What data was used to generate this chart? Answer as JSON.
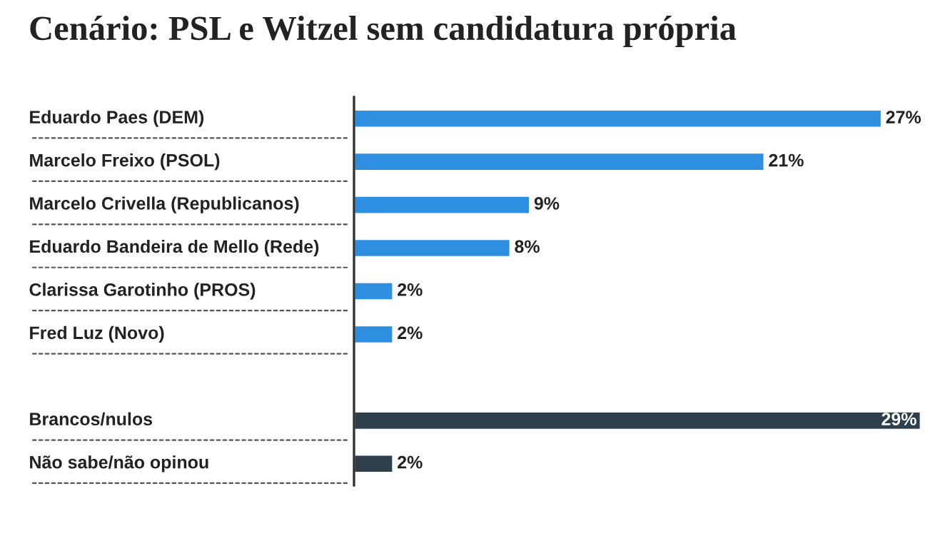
{
  "chart_data": {
    "type": "bar",
    "orientation": "horizontal",
    "title": "Cenário: PSL e Witzel sem candidatura própria",
    "categories": [
      "Eduardo Paes (DEM)",
      "Marcelo Freixo (PSOL)",
      "Marcelo Crivella (Republicanos)",
      "Eduardo Bandeira de Mello (Rede)",
      "Clarissa Garotinho (PROS)",
      "Fred Luz (Novo)",
      null,
      "Brancos/nulos",
      "Não sabe/não opinou"
    ],
    "values": [
      27,
      21,
      9,
      8,
      2,
      2,
      null,
      29,
      2
    ],
    "value_labels": [
      "27%",
      "21%",
      "9%",
      "8%",
      "2%",
      "2%",
      null,
      "29%",
      "2%"
    ],
    "colors": [
      "#2e8ee0",
      "#2e8ee0",
      "#2e8ee0",
      "#2e8ee0",
      "#2e8ee0",
      "#2e8ee0",
      null,
      "#2c3f4b",
      "#2c3f4b"
    ],
    "legend": false
  }
}
